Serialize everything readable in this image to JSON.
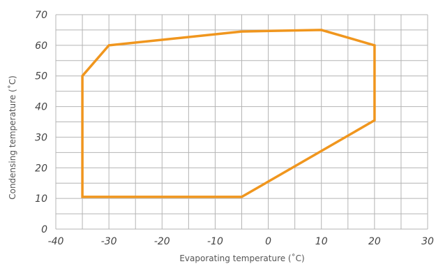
{
  "chart_data": {
    "type": "line",
    "title": "",
    "xlabel": "Evaporating temperature (˚C)",
    "ylabel": "Condensing temperature (˚C)",
    "xlim": [
      -40,
      30
    ],
    "ylim": [
      0,
      70
    ],
    "x_major_ticks": [
      -40,
      -30,
      -20,
      -10,
      0,
      10,
      20,
      30
    ],
    "y_major_ticks": [
      0,
      10,
      20,
      30,
      40,
      50,
      60,
      70
    ],
    "x_tick_labels": [
      "-40",
      "-30",
      "-20",
      "-10",
      "0",
      "10",
      "20",
      "30"
    ],
    "y_tick_labels": [
      "0",
      "10",
      "20",
      "30",
      "40",
      "50",
      "60",
      "70"
    ],
    "grid": true,
    "grid_minor_step_x": 5,
    "grid_minor_step_y": 5,
    "legend": "none",
    "series": [
      {
        "closed": true,
        "color": "#f0961e",
        "points": [
          [
            -35,
            10.5
          ],
          [
            -35,
            50
          ],
          [
            -30,
            60
          ],
          [
            -5,
            64.5
          ],
          [
            10,
            65
          ],
          [
            20,
            60
          ],
          [
            20,
            35.5
          ],
          [
            -5,
            10.5
          ]
        ]
      }
    ]
  }
}
